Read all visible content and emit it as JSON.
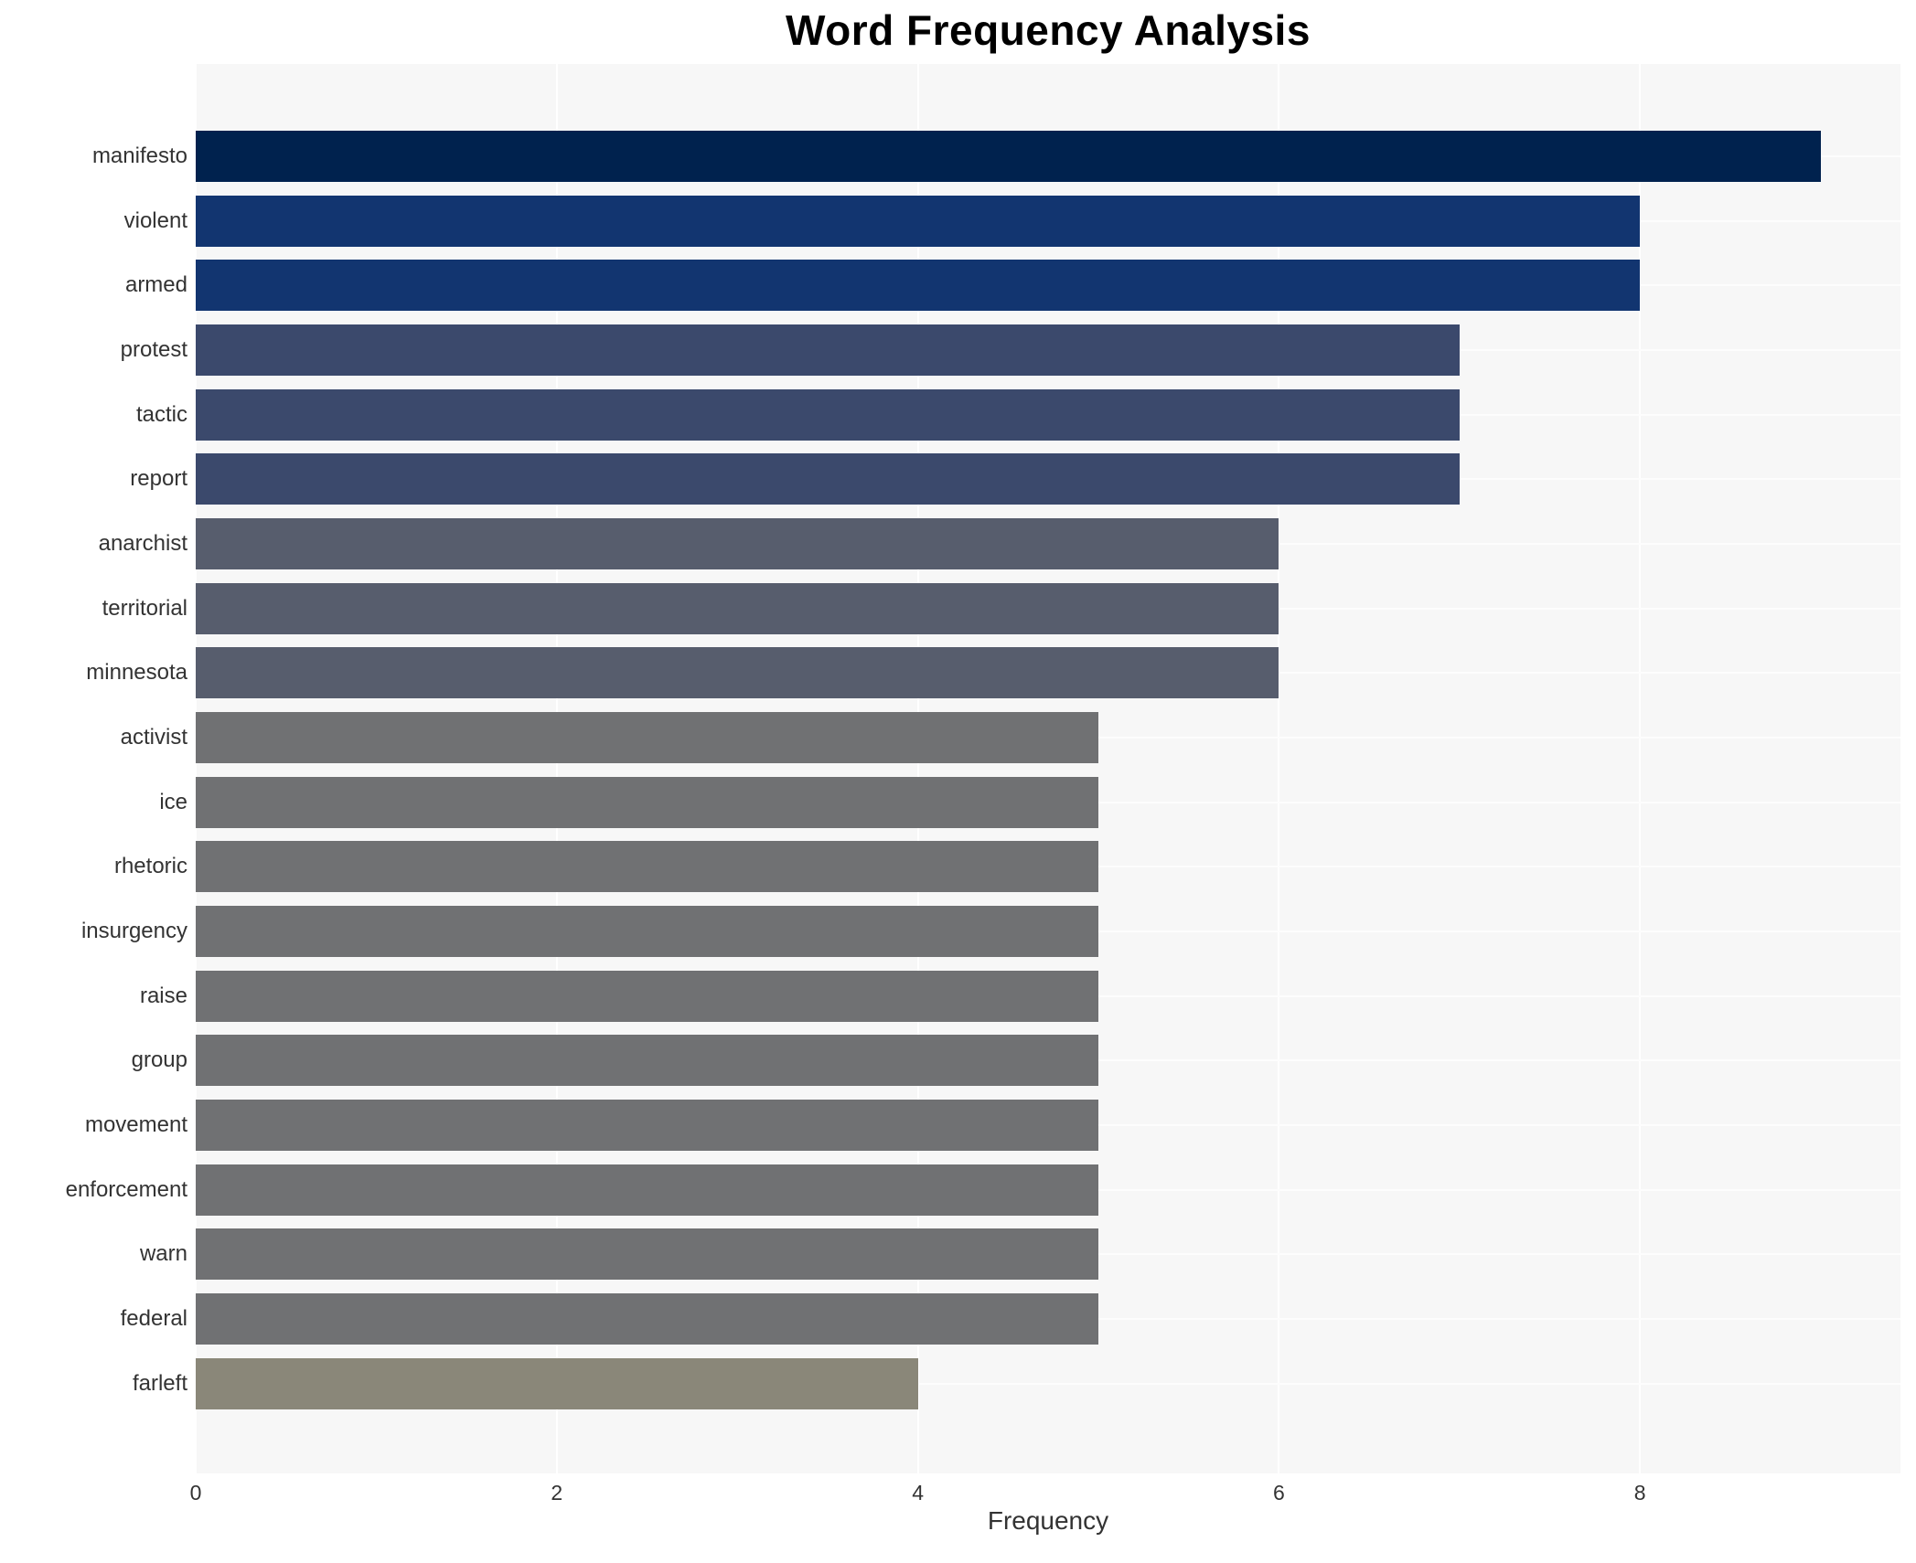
{
  "title": "Word Frequency Analysis",
  "xlabel": "Frequency",
  "chart_data": {
    "type": "bar",
    "orientation": "horizontal",
    "title": "Word Frequency Analysis",
    "xlabel": "Frequency",
    "ylabel": "",
    "categories": [
      "manifesto",
      "violent",
      "armed",
      "protest",
      "tactic",
      "report",
      "anarchist",
      "territorial",
      "minnesota",
      "activist",
      "ice",
      "rhetoric",
      "insurgency",
      "raise",
      "group",
      "movement",
      "enforcement",
      "warn",
      "federal",
      "farleft"
    ],
    "values": [
      9,
      8,
      8,
      7,
      7,
      7,
      6,
      6,
      6,
      5,
      5,
      5,
      5,
      5,
      5,
      5,
      5,
      5,
      5,
      4
    ],
    "bar_colors": [
      "#00224e",
      "#123570",
      "#123570",
      "#3b496c",
      "#3b496c",
      "#3b496c",
      "#575d6d",
      "#575d6d",
      "#575d6d",
      "#707173",
      "#707173",
      "#707173",
      "#707173",
      "#707173",
      "#707173",
      "#707173",
      "#707173",
      "#707173",
      "#707173",
      "#8a8779"
    ],
    "xticks": [
      0,
      2,
      4,
      6,
      8
    ],
    "xlim": [
      0,
      9.44
    ],
    "grid": true,
    "legend": false,
    "plot_background": "#f7f7f7",
    "grid_color": "#ffffff",
    "title_color": "#000000",
    "label_color": "#333333"
  }
}
